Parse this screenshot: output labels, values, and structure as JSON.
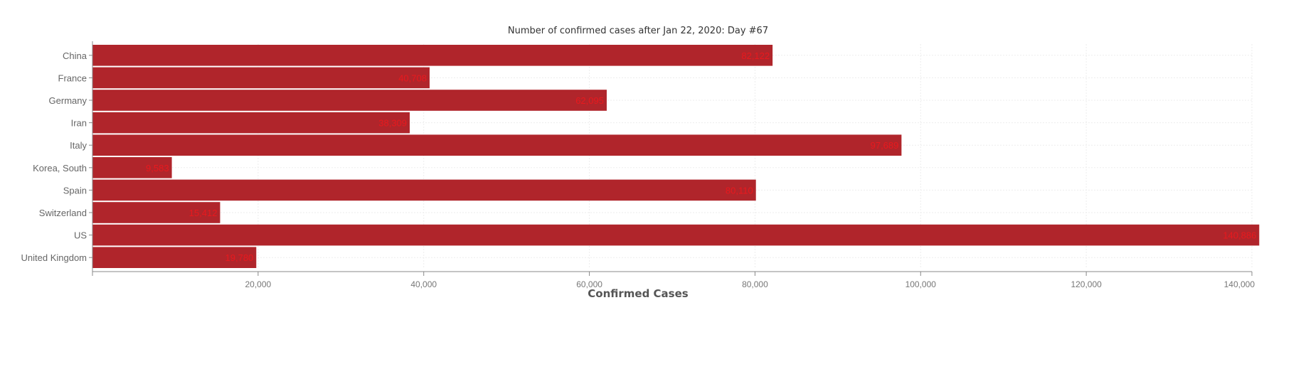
{
  "chart_data": {
    "type": "bar",
    "orientation": "horizontal",
    "title": "Number of confirmed cases after Jan 22, 2020: Day #67",
    "xlabel": "Confirmed Cases",
    "ylabel": "",
    "xlim": [
      0,
      140000
    ],
    "x_ticks": [
      20000,
      40000,
      60000,
      80000,
      100000,
      120000,
      140000
    ],
    "x_tick_labels": [
      "20,000",
      "40,000",
      "60,000",
      "80,000",
      "100,000",
      "120,000",
      "140,000"
    ],
    "grid": true,
    "categories": [
      "China",
      "France",
      "Germany",
      "Iran",
      "Italy",
      "Korea, South",
      "Spain",
      "Switzerland",
      "US",
      "United Kingdom"
    ],
    "values": [
      82122,
      40708,
      62095,
      38309,
      97689,
      9583,
      80110,
      15412,
      140886,
      19780
    ],
    "value_labels": [
      "82,122",
      "40,708",
      "62,095",
      "38,309",
      "97,689",
      "9,583",
      "80,110",
      "15,412",
      "140,886",
      "19,780"
    ],
    "colors": {
      "bar": "#b0252b",
      "value_label": "#e8191e"
    }
  }
}
